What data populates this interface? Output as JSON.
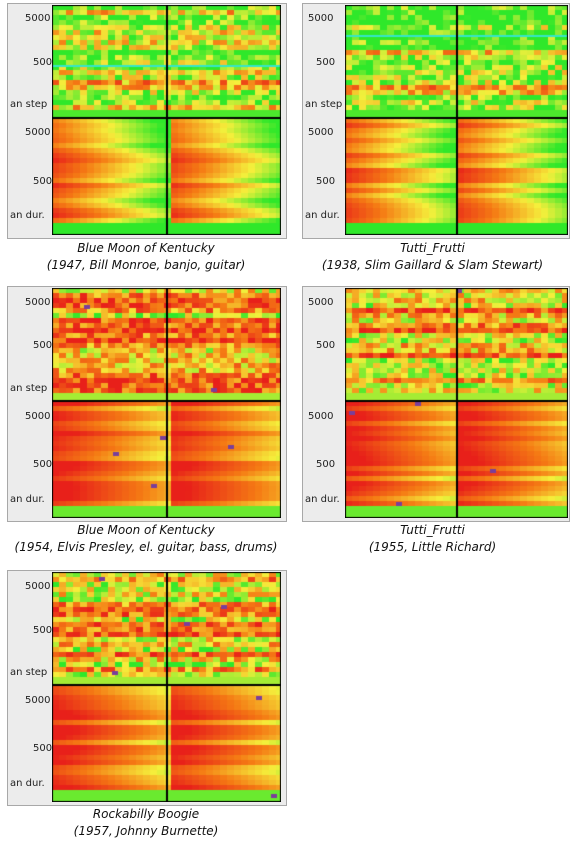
{
  "y_tick_labels": [
    "5000",
    "500",
    "an step",
    "5000",
    "500",
    "an dur."
  ],
  "chart_data": [
    {
      "type": "heatmap",
      "title": "Blue Moon of Kentucky",
      "subtitle": "(1947, Bill Monroe, banjo, guitar)",
      "dominant": "green",
      "seed": 11
    },
    {
      "type": "heatmap",
      "title": "Tutti_Frutti",
      "subtitle": "(1938, Slim Gaillard & Slam Stewart)",
      "dominant": "green",
      "seed": 23
    },
    {
      "type": "heatmap",
      "title": "Blue Moon of Kentucky",
      "subtitle": "(1954, Elvis Presley, el. guitar, bass, drums)",
      "dominant": "red",
      "seed": 37
    },
    {
      "type": "heatmap",
      "title": "Tutti_Frutti",
      "subtitle": "(1955, Little Richard)",
      "dominant": "red",
      "seed": 51
    },
    {
      "type": "heatmap",
      "title": "Rockabilly Boogie",
      "subtitle": "(1957, Johnny Burnette)",
      "dominant": "red",
      "seed": 67
    }
  ],
  "colors": {
    "red": "#e8201a",
    "orange": "#f57a14",
    "yellow": "#f5f03c",
    "green": "#2fe82a",
    "cyan": "#35e6c8",
    "purple": "#7a3f9a"
  }
}
